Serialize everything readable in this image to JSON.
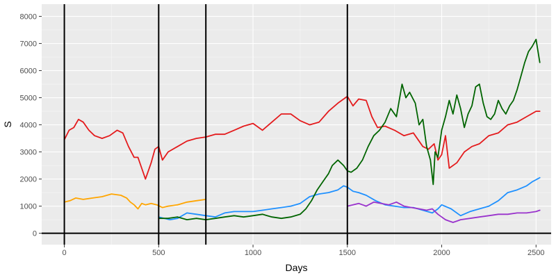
{
  "chart_data": {
    "type": "line",
    "title": "",
    "xlabel": "Days",
    "ylabel": "S",
    "xlim": [
      -120,
      2580
    ],
    "ylim": [
      -420,
      8450
    ],
    "x_ticks": [
      0,
      500,
      1000,
      1500,
      2000,
      2500
    ],
    "y_ticks": [
      0,
      1000,
      2000,
      3000,
      4000,
      5000,
      6000,
      7000,
      8000
    ],
    "x_tick_labels": [
      "0",
      "500",
      "1000",
      "1500",
      "2000",
      "2500"
    ],
    "y_tick_labels": [
      "0",
      "1000",
      "2000",
      "3000",
      "4000",
      "5000",
      "6000",
      "7000",
      "8000"
    ],
    "grid": true,
    "legend": "none",
    "background": "#EBEBEB",
    "grid_color": "#FFFFFF",
    "reference_lines": {
      "vertical": [
        0,
        500,
        750,
        1500
      ],
      "horizontal": [
        0
      ],
      "color": "#000000"
    },
    "series": [
      {
        "color": "#E41A1C",
        "x": [
          0,
          25,
          50,
          75,
          100,
          130,
          160,
          200,
          240,
          280,
          310,
          340,
          370,
          390,
          410,
          430,
          445,
          460,
          480,
          500,
          520,
          550,
          600,
          650,
          700,
          750,
          800,
          850,
          900,
          950,
          1000,
          1050,
          1100,
          1150,
          1200,
          1250,
          1300,
          1350,
          1400,
          1450,
          1500,
          1530,
          1560,
          1600,
          1630,
          1660,
          1700,
          1750,
          1800,
          1850,
          1900,
          1930,
          1960,
          1980,
          2000,
          2020,
          2040,
          2080,
          2120,
          2160,
          2200,
          2250,
          2300,
          2350,
          2400,
          2450,
          2500,
          2520
        ],
        "values": [
          3450,
          3800,
          3900,
          4200,
          4100,
          3800,
          3600,
          3500,
          3600,
          3800,
          3700,
          3200,
          2800,
          2800,
          2400,
          2000,
          2300,
          2600,
          3100,
          3200,
          2700,
          3000,
          3200,
          3400,
          3500,
          3550,
          3650,
          3650,
          3800,
          3950,
          4050,
          3800,
          4100,
          4400,
          4400,
          4150,
          4000,
          4100,
          4500,
          4800,
          5050,
          4700,
          4950,
          4900,
          4300,
          3900,
          3950,
          3800,
          3600,
          3700,
          3200,
          3100,
          3300,
          2700,
          2900,
          3600,
          2400,
          2600,
          3000,
          3200,
          3300,
          3600,
          3700,
          4000,
          4100,
          4300,
          4500,
          4500
        ]
      },
      {
        "color": "#FFA500",
        "x": [
          0,
          30,
          60,
          100,
          150,
          200,
          250,
          300,
          330,
          350,
          370,
          390,
          410,
          430,
          460,
          490,
          520,
          550,
          600,
          650,
          700,
          750
        ],
        "values": [
          1150,
          1200,
          1300,
          1250,
          1300,
          1350,
          1450,
          1400,
          1300,
          1150,
          1050,
          900,
          1100,
          1050,
          1100,
          1050,
          950,
          1000,
          1050,
          1150,
          1200,
          1250
        ]
      },
      {
        "color": "#1E90FF",
        "x": [
          500,
          530,
          560,
          600,
          650,
          700,
          750,
          800,
          850,
          900,
          950,
          1000,
          1050,
          1100,
          1150,
          1200,
          1250,
          1300,
          1350,
          1400,
          1450,
          1480,
          1500,
          1530,
          1560,
          1600,
          1650,
          1700,
          1750,
          1800,
          1850,
          1900,
          1950,
          1980,
          2000,
          2050,
          2100,
          2150,
          2200,
          2250,
          2300,
          2350,
          2400,
          2450,
          2480,
          2520
        ],
        "values": [
          600,
          550,
          500,
          550,
          750,
          700,
          650,
          600,
          750,
          800,
          800,
          800,
          850,
          900,
          950,
          1000,
          1100,
          1350,
          1450,
          1500,
          1600,
          1750,
          1700,
          1550,
          1500,
          1400,
          1200,
          1050,
          1000,
          950,
          950,
          850,
          750,
          900,
          1050,
          900,
          650,
          800,
          900,
          1000,
          1200,
          1500,
          1600,
          1750,
          1900,
          2050
        ]
      },
      {
        "color": "#006400",
        "x": [
          500,
          550,
          600,
          650,
          700,
          750,
          800,
          850,
          900,
          950,
          1000,
          1050,
          1100,
          1150,
          1200,
          1250,
          1280,
          1310,
          1340,
          1370,
          1400,
          1420,
          1450,
          1480,
          1500,
          1520,
          1550,
          1580,
          1610,
          1640,
          1670,
          1700,
          1730,
          1760,
          1790,
          1810,
          1830,
          1860,
          1880,
          1900,
          1920,
          1940,
          1955,
          1965,
          1980,
          2000,
          2020,
          2040,
          2060,
          2080,
          2100,
          2120,
          2140,
          2160,
          2180,
          2200,
          2220,
          2240,
          2260,
          2280,
          2300,
          2320,
          2340,
          2360,
          2380,
          2400,
          2420,
          2440,
          2460,
          2480,
          2500,
          2520
        ],
        "values": [
          550,
          550,
          600,
          500,
          550,
          500,
          550,
          600,
          650,
          600,
          650,
          700,
          600,
          550,
          600,
          700,
          900,
          1200,
          1600,
          1900,
          2200,
          2500,
          2700,
          2500,
          2300,
          2250,
          2400,
          2700,
          3200,
          3600,
          3800,
          4100,
          4600,
          4300,
          5500,
          5000,
          5200,
          4800,
          4000,
          4200,
          3200,
          2700,
          1800,
          3000,
          2800,
          3800,
          4300,
          4900,
          4400,
          5100,
          4600,
          3900,
          4400,
          4700,
          5400,
          5500,
          4800,
          4300,
          4200,
          4400,
          4900,
          4600,
          4400,
          4700,
          4900,
          5300,
          5800,
          6300,
          6700,
          6900,
          7150,
          6300
        ]
      },
      {
        "color": "#9932CC",
        "x": [
          1500,
          1530,
          1560,
          1600,
          1640,
          1680,
          1720,
          1760,
          1800,
          1840,
          1880,
          1920,
          1950,
          1980,
          2000,
          2020,
          2040,
          2060,
          2080,
          2100,
          2150,
          2200,
          2250,
          2300,
          2350,
          2400,
          2450,
          2500,
          2520
        ],
        "values": [
          1000,
          1050,
          1100,
          1000,
          1150,
          1100,
          1050,
          1150,
          1000,
          950,
          900,
          850,
          900,
          700,
          600,
          500,
          450,
          400,
          450,
          500,
          550,
          600,
          650,
          700,
          700,
          750,
          750,
          800,
          850
        ]
      }
    ]
  }
}
